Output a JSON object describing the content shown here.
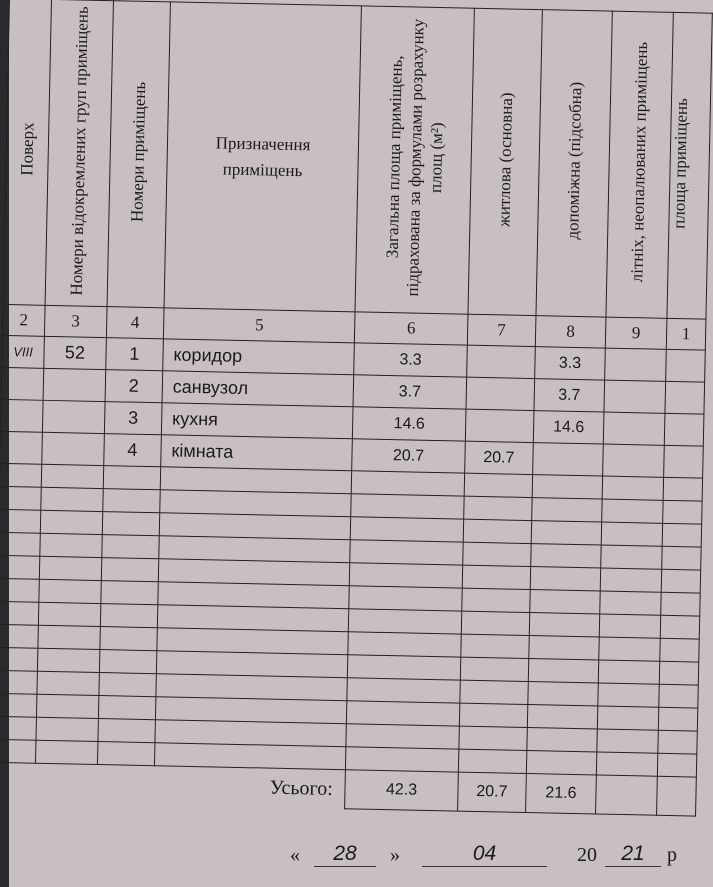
{
  "headers": {
    "c2": "Поверх",
    "c3": "Номери відокремлених груп приміщень",
    "c4": "Номери приміщень",
    "c5": "Призначення приміщень",
    "c6": "Загальна площа приміщень, підрахована за формулами розрахунку площ (м²)",
    "c7": "житлова (основна)",
    "c8": "допоміжна (підсобна)",
    "c9": "літніх, неопалюваних приміщень",
    "c10": "площа приміщень"
  },
  "column_numbers": [
    "2",
    "3",
    "4",
    "5",
    "6",
    "7",
    "8",
    "9",
    "1"
  ],
  "rows": [
    {
      "floor": "VIII",
      "group": "52",
      "room": "1",
      "purpose": "коридор",
      "total": "3.3",
      "living": "",
      "auxiliary": "3.3"
    },
    {
      "floor": "",
      "group": "",
      "room": "2",
      "purpose": "санвузол",
      "total": "3.7",
      "living": "",
      "auxiliary": "3.7"
    },
    {
      "floor": "",
      "group": "",
      "room": "3",
      "purpose": "кухня",
      "total": "14.6",
      "living": "",
      "auxiliary": "14.6"
    },
    {
      "floor": "",
      "group": "",
      "room": "4",
      "purpose": "кімната",
      "total": "20.7",
      "living": "20.7",
      "auxiliary": ""
    }
  ],
  "totals": {
    "label": "Усього:",
    "total": "42.3",
    "living": "20.7",
    "auxiliary": "21.6"
  },
  "date": {
    "open_quote": "«",
    "day": "28",
    "close_quote": "»",
    "month": "04",
    "century": "20",
    "year": "21",
    "suffix": "р"
  }
}
